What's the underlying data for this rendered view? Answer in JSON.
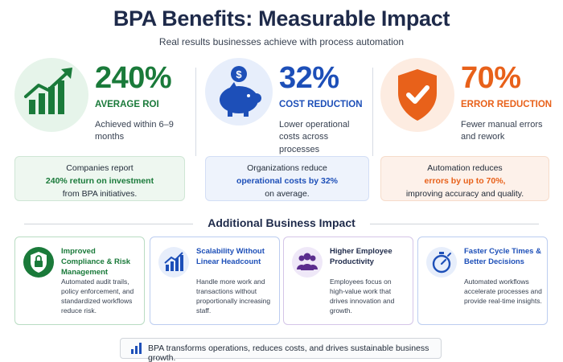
{
  "header": {
    "title": "BPA Benefits: Measurable Impact",
    "subtitle": "Real results businesses achieve with process automation"
  },
  "stats": [
    {
      "value": "240%",
      "label": "AVERAGE ROI",
      "description": "Achieved within 6–9 months",
      "box_line1": "Companies report",
      "box_highlight": "240% return on investment",
      "box_line3": "from BPA initiatives.",
      "color": "#1a7a3a",
      "icon": "growth-chart-icon"
    },
    {
      "value": "32%",
      "label": "COST REDUCTION",
      "description": "Lower operational costs across processes",
      "box_line1": "Organizations reduce",
      "box_highlight": "operational costs by 32%",
      "box_line3": "on average.",
      "color": "#1d4fb8",
      "icon": "piggy-bank-icon"
    },
    {
      "value": "70%",
      "label": "ERROR REDUCTION",
      "description": "Fewer manual errors and rework",
      "box_line1": "Automation reduces",
      "box_highlight": "errors by up to 70%,",
      "box_line3": "improving accuracy and quality.",
      "color": "#e8611a",
      "icon": "shield-check-icon"
    }
  ],
  "impact": {
    "heading": "Additional Business Impact",
    "cards": [
      {
        "title": "Improved Compliance & Risk Management",
        "description": "Automated audit trails, policy enforcement, and standardized workflows reduce risk.",
        "color": "#1a7a3a",
        "icon": "lock-shield-icon"
      },
      {
        "title": "Scalability Without Linear Headcount",
        "description": "Handle more work and transactions without proportionally increasing staff.",
        "color": "#1d4fb8",
        "icon": "growth-bars-icon"
      },
      {
        "title": "Higher Employee Productivity",
        "description": "Employees focus on high-value work that drives innovation and growth.",
        "color": "#5b2d8e",
        "icon": "people-icon"
      },
      {
        "title": "Faster Cycle Times & Better Decisions",
        "description": "Automated workflows accelerate processes and provide real-time insights.",
        "color": "#1d4fb8",
        "icon": "stopwatch-icon"
      }
    ]
  },
  "footer": {
    "text": "BPA transforms operations, reduces costs, and drives sustainable business growth.",
    "icon": "bar-chart-icon"
  }
}
